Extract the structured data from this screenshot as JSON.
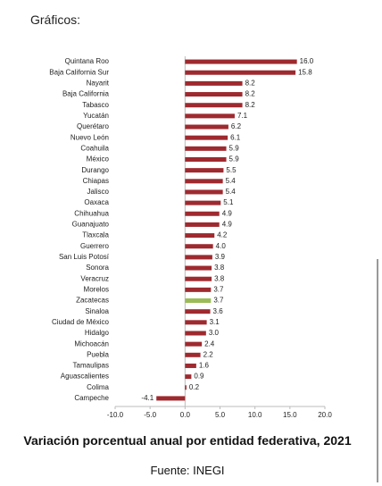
{
  "header": "Gráficos:",
  "chart_data": {
    "type": "bar",
    "orientation": "horizontal",
    "title": "Variación porcentual anual por entidad federativa, 2021",
    "source": "Fuente: INEGI",
    "categories": [
      "Quintana Roo",
      "Baja California Sur",
      "Nayarit",
      "Baja California",
      "Tabasco",
      "Yucatán",
      "Querétaro",
      "Nuevo León",
      "Coahuila",
      "México",
      "Durango",
      "Chiapas",
      "Jalisco",
      "Oaxaca",
      "Chihuahua",
      "Guanajuato",
      "Tlaxcala",
      "Guerrero",
      "San Luis Potosí",
      "Sonora",
      "Veracruz",
      "Morelos",
      "Zacatecas",
      "Sinaloa",
      "Ciudad de México",
      "Hidalgo",
      "Michoacán",
      "Puebla",
      "Tamaulipas",
      "Aguascalientes",
      "Colima",
      "Campeche"
    ],
    "values": [
      16.0,
      15.8,
      8.2,
      8.2,
      8.2,
      7.1,
      6.2,
      6.1,
      5.9,
      5.9,
      5.5,
      5.4,
      5.4,
      5.1,
      4.9,
      4.9,
      4.2,
      4.0,
      3.9,
      3.8,
      3.8,
      3.7,
      3.7,
      3.6,
      3.1,
      3.0,
      2.4,
      2.2,
      1.6,
      0.9,
      0.2,
      -4.1
    ],
    "value_labels": [
      "16.0",
      "15.8",
      "8.2",
      "8.2",
      "8.2",
      "7.1",
      "6.2",
      "6.1",
      "5.9",
      "5.9",
      "5.5",
      "5.4",
      "5.4",
      "5.1",
      "4.9",
      "4.9",
      "4.2",
      "4.0",
      "3.9",
      "3.8",
      "3.8",
      "3.7",
      "3.7",
      "3.6",
      "3.1",
      "3.0",
      "2.4",
      "2.2",
      "1.6",
      "0.9",
      "0.2",
      "-4.1"
    ],
    "colors": [
      "#9e2a2f",
      "#9e2a2f",
      "#9e2a2f",
      "#9e2a2f",
      "#9e2a2f",
      "#9e2a2f",
      "#9e2a2f",
      "#9e2a2f",
      "#9e2a2f",
      "#9e2a2f",
      "#9e2a2f",
      "#9e2a2f",
      "#9e2a2f",
      "#9e2a2f",
      "#9e2a2f",
      "#9e2a2f",
      "#9e2a2f",
      "#9e2a2f",
      "#9e2a2f",
      "#9e2a2f",
      "#9e2a2f",
      "#9e2a2f",
      "#9bbb59",
      "#9e2a2f",
      "#9e2a2f",
      "#9e2a2f",
      "#9e2a2f",
      "#9e2a2f",
      "#9e2a2f",
      "#9e2a2f",
      "#9e2a2f",
      "#9e2a2f"
    ],
    "xlim": [
      -10,
      20
    ],
    "xticks": [
      {
        "value": -10,
        "label": "-10.0"
      },
      {
        "value": -5,
        "label": "-5.0"
      },
      {
        "value": 0,
        "label": "0.0"
      },
      {
        "value": 5,
        "label": "5.0"
      },
      {
        "value": 10,
        "label": "10.0"
      },
      {
        "value": 15,
        "label": "15.0"
      },
      {
        "value": 20,
        "label": "20.0"
      }
    ],
    "grid": false
  }
}
